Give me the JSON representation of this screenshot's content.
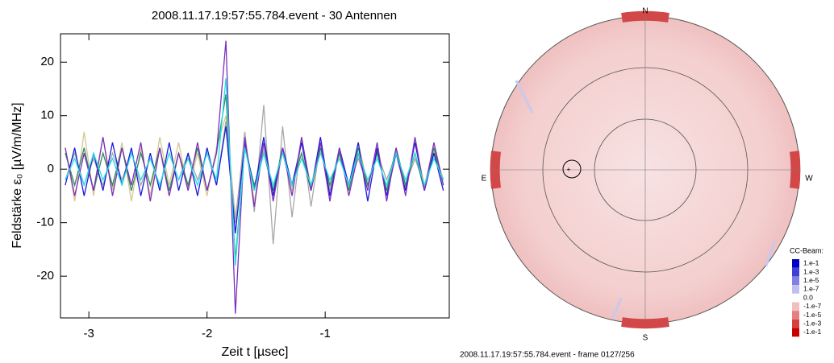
{
  "chart_data": [
    {
      "type": "line",
      "title": "2008.11.17.19:57:55.784.event - 30 Antennen",
      "xlabel": "Zeit t [µsec]",
      "ylabel": "Feldstärke ε₀ [µV/m/MHz]",
      "x": [
        -3.2,
        -3.12,
        -3.04,
        -2.96,
        -2.88,
        -2.8,
        -2.72,
        -2.64,
        -2.56,
        -2.48,
        -2.4,
        -2.32,
        -2.24,
        -2.16,
        -2.08,
        -2.0,
        -1.92,
        -1.84,
        -1.76,
        -1.68,
        -1.6,
        -1.52,
        -1.44,
        -1.36,
        -1.28,
        -1.2,
        -1.12,
        -1.04,
        -0.96,
        -0.88,
        -0.8,
        -0.72,
        -0.64,
        -0.56,
        -0.48,
        -0.4,
        -0.32,
        -0.24,
        -0.16,
        -0.08,
        0
      ],
      "series": [
        {
          "color": "#d6c594",
          "values": [
            4,
            -6,
            7,
            -5,
            6,
            -4,
            5,
            -6,
            4,
            -5,
            6,
            -3,
            5,
            -4,
            3,
            -5,
            4,
            10,
            -9,
            5,
            -6,
            4,
            -5,
            3,
            -4,
            5,
            -3,
            4,
            -5,
            3,
            -4,
            5,
            -3,
            4,
            -5,
            3,
            -4,
            5,
            -3,
            4,
            -2
          ]
        },
        {
          "color": "#a8a8a8",
          "values": [
            -2,
            3,
            -3,
            2,
            -3,
            3,
            -2,
            3,
            -3,
            2,
            -3,
            3,
            -2,
            3,
            -2,
            3,
            -3,
            9,
            -10,
            7,
            -8,
            12,
            -14,
            8,
            -9,
            6,
            -7,
            5,
            -4,
            3,
            -3,
            2,
            -3,
            3,
            -2,
            3,
            -3,
            2,
            -3,
            3,
            -2
          ]
        },
        {
          "color": "#2e8b57",
          "values": [
            3,
            -3,
            4,
            -4,
            3,
            -3,
            4,
            -4,
            3,
            -3,
            4,
            -4,
            3,
            -3,
            4,
            -4,
            3,
            14,
            -17,
            4,
            -3,
            3,
            -4,
            4,
            -3,
            3,
            -4,
            4,
            -3,
            3,
            -4,
            4,
            -3,
            3,
            -4,
            4,
            -3,
            3,
            -4,
            4,
            -3
          ]
        },
        {
          "color": "#1a1adb",
          "values": [
            -3,
            4,
            -5,
            3,
            -4,
            5,
            -3,
            4,
            -5,
            3,
            -4,
            5,
            -4,
            3,
            -5,
            4,
            -3,
            8,
            -12,
            5,
            -4,
            6,
            -5,
            4,
            -3,
            5,
            -4,
            6,
            -5,
            4,
            -3,
            5,
            -6,
            4,
            -5,
            3,
            -4,
            5,
            -4,
            3,
            -4
          ]
        },
        {
          "color": "#7b2fbe",
          "values": [
            4,
            -5,
            3,
            -4,
            6,
            -5,
            4,
            -3,
            5,
            -6,
            4,
            -5,
            3,
            -4,
            5,
            -4,
            3,
            24,
            -27,
            6,
            -7,
            5,
            -6,
            4,
            -5,
            6,
            -4,
            5,
            -6,
            4,
            -5,
            3,
            -4,
            5,
            -6,
            4,
            -5,
            6,
            -4,
            5,
            -3
          ]
        },
        {
          "color": "#22e0e8",
          "values": [
            -2,
            2,
            -3,
            3,
            -2,
            2,
            -3,
            3,
            -2,
            2,
            -3,
            3,
            -2,
            2,
            -3,
            3,
            -2,
            17,
            -18,
            4,
            -4,
            3,
            -3,
            3,
            -3,
            2,
            -3,
            3,
            -2,
            2,
            -3,
            3,
            -2,
            2,
            -3,
            3,
            -2,
            3,
            -3,
            2,
            -2
          ]
        }
      ],
      "xlim": [
        -3.24,
        0.05
      ],
      "xticks": [
        -3,
        -2,
        -1
      ],
      "ylim": [
        -27.8,
        25.3
      ],
      "yticks": [
        -20,
        -10,
        0,
        10,
        20
      ]
    },
    {
      "type": "skymap",
      "caption": "2008.11.17.19:57:55.784.event - frame 0127/256",
      "compass": [
        "N",
        "E",
        "S",
        "W"
      ],
      "colorbar_title": "CC-Beam:",
      "colorbar": [
        {
          "label": "1.e-1",
          "color": "#0000c8"
        },
        {
          "label": "1.e-3",
          "color": "#3f3fd8"
        },
        {
          "label": "1.e-5",
          "color": "#8080e6"
        },
        {
          "label": "1.e-7",
          "color": "#c0c0f0"
        },
        {
          "label": "0.0",
          "color": "#ffffff"
        },
        {
          "label": "-1.e-7",
          "color": "#f0c0c0"
        },
        {
          "label": "-1.e-5",
          "color": "#e68080"
        },
        {
          "label": "-1.e-3",
          "color": "#d84040"
        },
        {
          "label": "-1.e-1",
          "color": "#c80000"
        }
      ]
    }
  ]
}
